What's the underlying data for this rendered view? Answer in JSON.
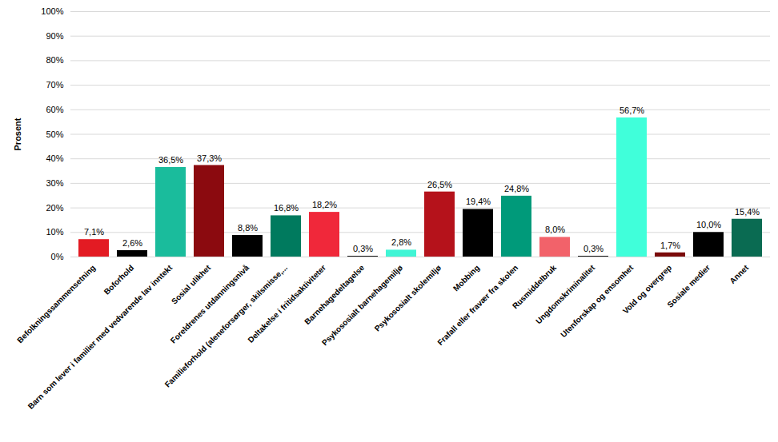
{
  "chart_data": {
    "type": "bar",
    "y_label": "Prosent",
    "categories": [
      "Befolkningssammensetning",
      "Boforhold",
      "Barn som lever i familier med vedvarende lav inntekt",
      "Sosial ulikhet",
      "Foreldrenes utdanningsnivå",
      "Familieforhold (aleneforsørger, skilsmisse,...",
      "Deltakelse i fritidsaktiviteter",
      "Barnehagedeltagelse",
      "Psykososialt barnehagemiljø",
      "Psykososialt skolemiljø",
      "Mobbing",
      "Frafall eller fravær fra skolen",
      "Rusmiddelbruk",
      "Ungdomskriminalitet",
      "Utenforskap og ensomhet",
      "Vold og overgrep",
      "Sosiale medier",
      "Annet"
    ],
    "values": [
      7.1,
      2.6,
      36.5,
      37.3,
      8.8,
      16.8,
      18.2,
      0.3,
      2.8,
      26.5,
      19.4,
      24.8,
      8.0,
      0.3,
      56.7,
      1.7,
      10.0,
      15.4
    ],
    "value_labels": [
      "7,1%",
      "2,6%",
      "36,5%",
      "37,3%",
      "8,8%",
      "16,8%",
      "18,2%",
      "0,3%",
      "2,8%",
      "26,5%",
      "19,4%",
      "24,8%",
      "8,0%",
      "0,3%",
      "56,7%",
      "1,7%",
      "10,0%",
      "15,4%"
    ],
    "colors": [
      "#e31b23",
      "#000000",
      "#1abc9c",
      "#8b0a0f",
      "#000000",
      "#007a5e",
      "#f0283a",
      "#000000",
      "#40f5d5",
      "#b5121b",
      "#000000",
      "#009a7a",
      "#f2626a",
      "#000000",
      "#40ffda",
      "#7a0a0a",
      "#000000",
      "#0a6b52"
    ],
    "ylim": [
      0,
      100
    ],
    "yticks": [
      {
        "value": 0,
        "label": "0%"
      },
      {
        "value": 10,
        "label": "10%"
      },
      {
        "value": 20,
        "label": "20%"
      },
      {
        "value": 30,
        "label": "30%"
      },
      {
        "value": 40,
        "label": "40%"
      },
      {
        "value": 50,
        "label": "50%"
      },
      {
        "value": 60,
        "label": "60%"
      },
      {
        "value": 70,
        "label": "70%"
      },
      {
        "value": 80,
        "label": "80%"
      },
      {
        "value": 90,
        "label": "90%"
      },
      {
        "value": 100,
        "label": "100%"
      }
    ],
    "grid": true,
    "data_labels": true
  }
}
